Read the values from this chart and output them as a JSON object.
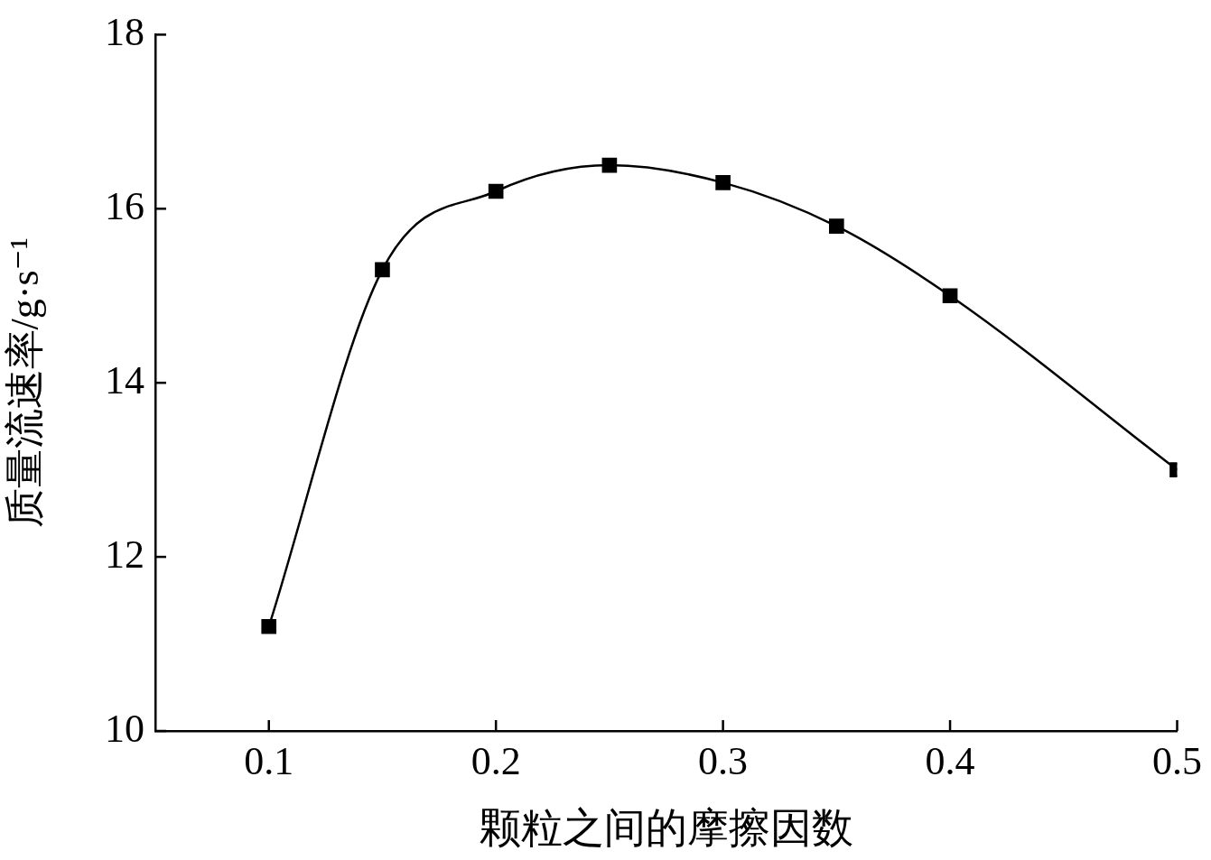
{
  "chart_data": {
    "type": "line",
    "xlabel": "颗粒之间的摩擦因数",
    "ylabel": "质量流速率/g·s⁻¹",
    "x": [
      0.1,
      0.15,
      0.2,
      0.25,
      0.3,
      0.35,
      0.4,
      0.5
    ],
    "series": [
      {
        "color": "#000000",
        "values": [
          11.2,
          15.3,
          16.2,
          16.5,
          16.3,
          15.8,
          15.0,
          13.0
        ]
      }
    ],
    "xlim": [
      0.05,
      0.5
    ],
    "xticks": [
      0.1,
      0.2,
      0.3,
      0.4,
      0.5
    ],
    "ylim": [
      10,
      18
    ],
    "yticks": [
      10,
      12,
      14,
      16,
      18
    ],
    "marker": "square",
    "line_style": "solid",
    "legend": false
  }
}
